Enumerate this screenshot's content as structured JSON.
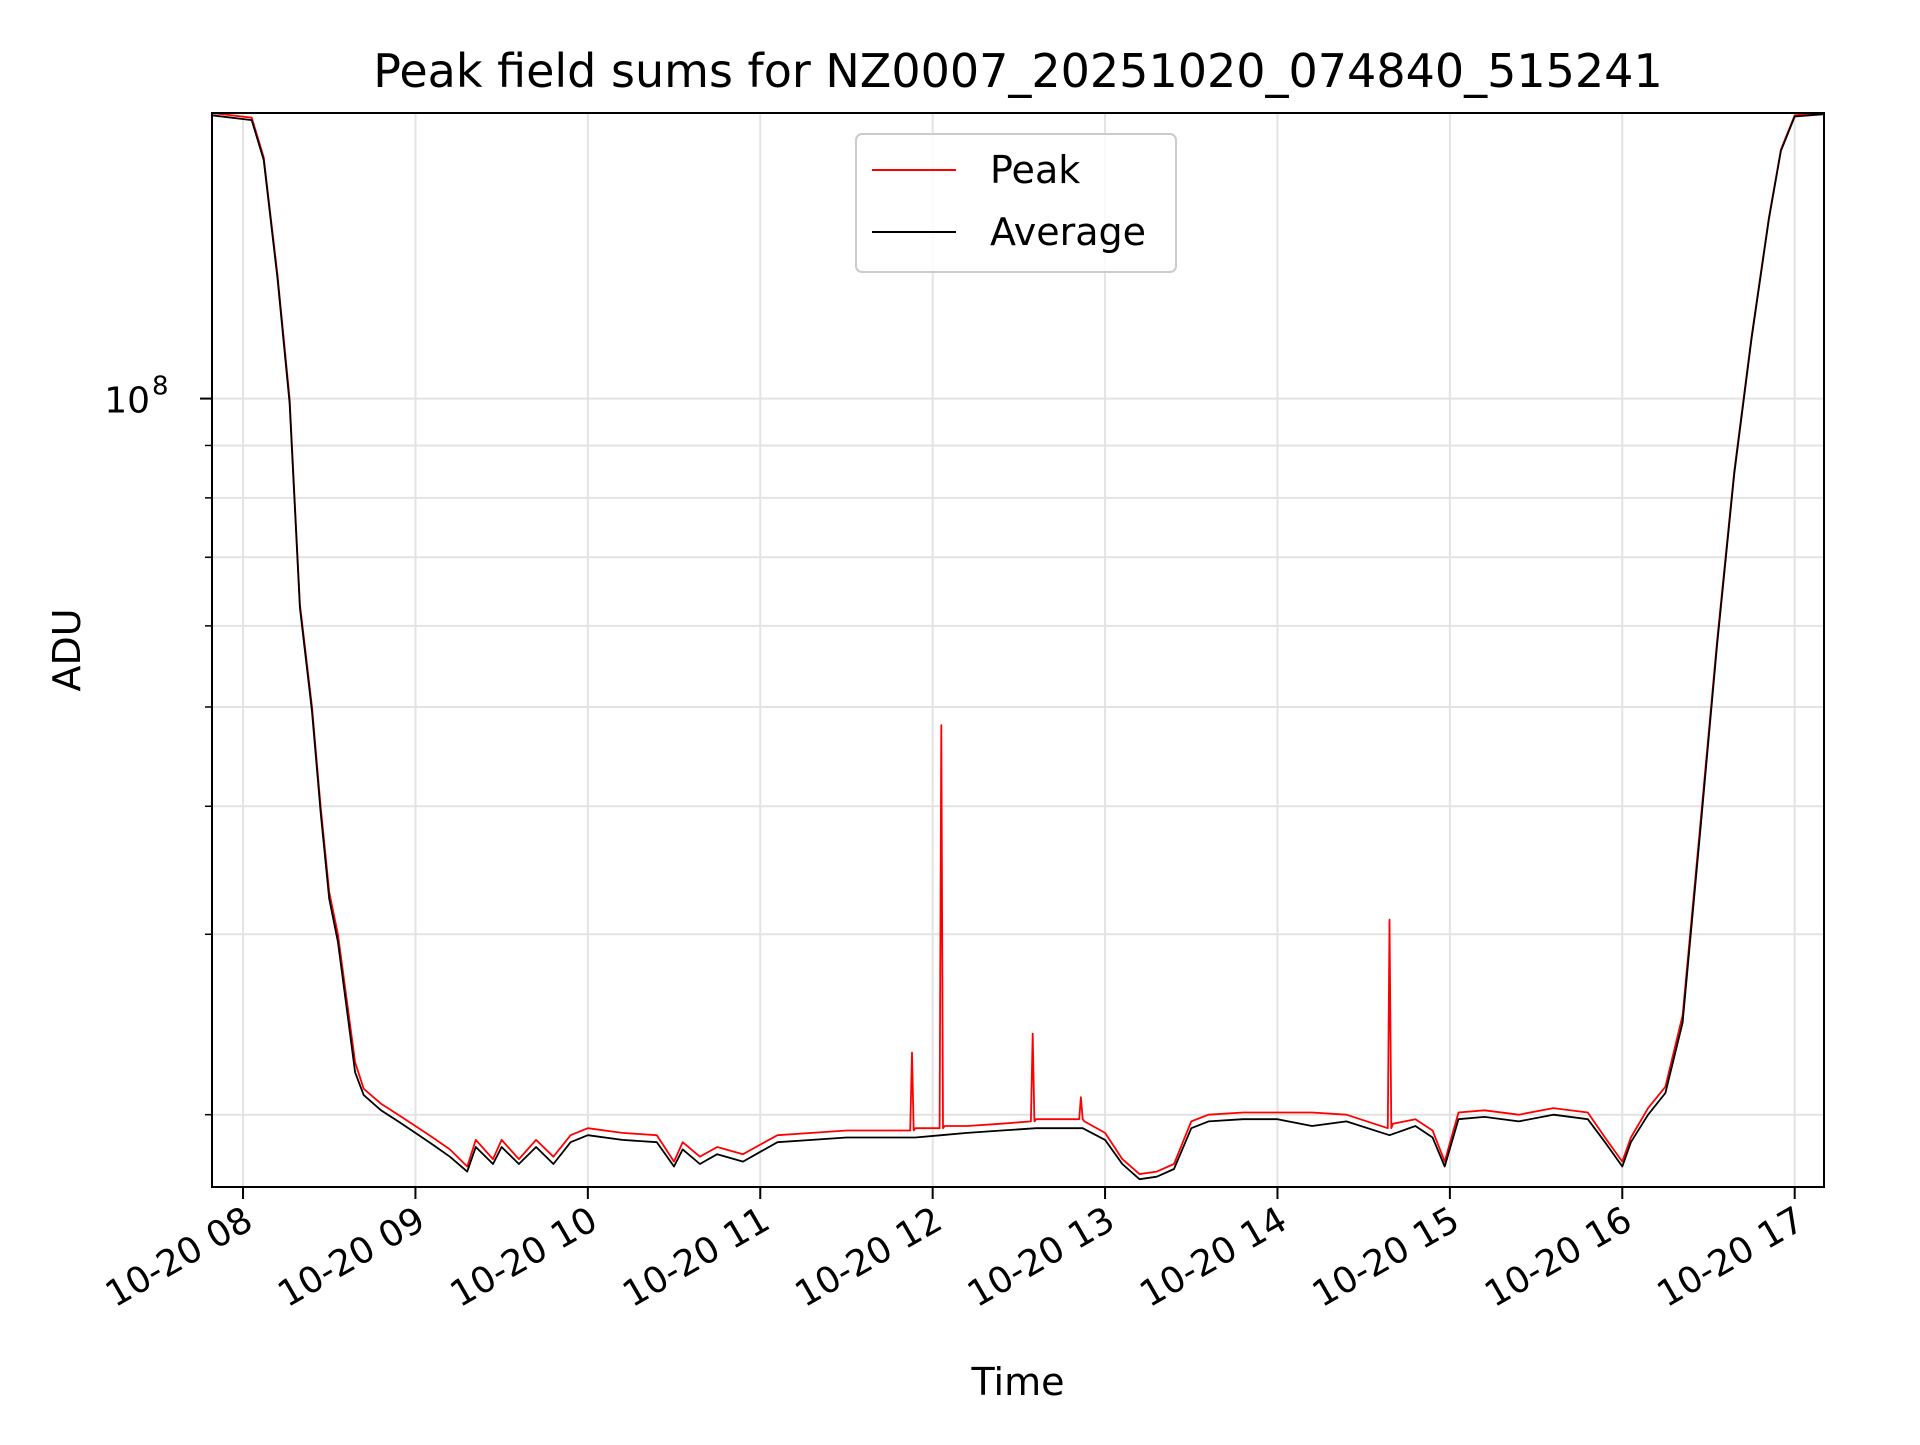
{
  "chart_data": {
    "type": "line",
    "title": "Peak field sums for NZ0007_20251020_074840_515241",
    "xlabel": "Time",
    "ylabel": "ADU",
    "y_scale": "log",
    "ylim": [
      17000000,
      190000000
    ],
    "xlim_hours": [
      7.82,
      17.17
    ],
    "grid": true,
    "legend_position": "upper center",
    "x_tick_values_hours": [
      8,
      9,
      10,
      11,
      12,
      13,
      14,
      15,
      16,
      17
    ],
    "x_ticks": [
      "10-20 08",
      "10-20 09",
      "10-20 10",
      "10-20 11",
      "10-20 12",
      "10-20 13",
      "10-20 14",
      "10-20 15",
      "10-20 16",
      "10-20 17"
    ],
    "y_major_tick_value": 100000000,
    "y_major_tick_mantissa": "10",
    "y_major_tick_exponent": "8",
    "y_minor_tick_values": [
      20000000,
      30000000,
      40000000,
      50000000,
      60000000,
      70000000,
      80000000,
      90000000
    ],
    "series": [
      {
        "name": "Peak",
        "color": "#ff0000",
        "x_hours": [
          7.82,
          8.05,
          8.12,
          8.2,
          8.27,
          8.33,
          8.4,
          8.45,
          8.5,
          8.55,
          8.6,
          8.65,
          8.7,
          8.8,
          8.9,
          9.0,
          9.1,
          9.2,
          9.3,
          9.35,
          9.45,
          9.5,
          9.6,
          9.7,
          9.8,
          9.9,
          10.0,
          10.2,
          10.4,
          10.5,
          10.55,
          10.65,
          10.75,
          10.9,
          11.0,
          11.1,
          11.3,
          11.5,
          11.7,
          11.87,
          11.88,
          11.89,
          11.9,
          12.04,
          12.05,
          12.06,
          12.07,
          12.2,
          12.4,
          12.57,
          12.58,
          12.59,
          12.6,
          12.85,
          12.86,
          12.87,
          12.88,
          13.0,
          13.1,
          13.2,
          13.3,
          13.4,
          13.5,
          13.6,
          13.8,
          14.0,
          14.2,
          14.4,
          14.64,
          14.65,
          14.66,
          14.67,
          14.8,
          14.9,
          14.97,
          15.05,
          15.2,
          15.4,
          15.6,
          15.8,
          15.9,
          16.0,
          16.05,
          16.15,
          16.25,
          16.35,
          16.45,
          16.55,
          16.65,
          16.75,
          16.85,
          16.92,
          17.0,
          17.17
        ],
        "y": [
          190000000,
          188000000,
          172000000,
          132000000,
          100000000,
          63000000,
          50000000,
          40000000,
          33000000,
          30000000,
          26000000,
          22500000,
          21200000,
          20500000,
          20000000,
          19500000,
          19000000,
          18500000,
          17800000,
          18900000,
          18100000,
          18900000,
          18100000,
          18900000,
          18200000,
          19100000,
          19400000,
          19200000,
          19100000,
          18000000,
          18800000,
          18200000,
          18600000,
          18300000,
          18700000,
          19100000,
          19200000,
          19300000,
          19300000,
          19300000,
          23000000,
          19300000,
          19400000,
          19400000,
          48000000,
          19400000,
          19500000,
          19500000,
          19600000,
          19700000,
          24000000,
          19700000,
          19800000,
          19800000,
          20800000,
          19800000,
          19700000,
          19200000,
          18100000,
          17500000,
          17600000,
          17900000,
          19700000,
          20000000,
          20100000,
          20100000,
          20100000,
          20000000,
          19400000,
          31000000,
          19400000,
          19600000,
          19800000,
          19300000,
          18000000,
          20100000,
          20200000,
          20000000,
          20300000,
          20100000,
          19000000,
          18000000,
          19000000,
          20300000,
          21300000,
          25000000,
          38000000,
          58000000,
          85000000,
          115000000,
          150000000,
          175000000,
          189000000,
          190000000
        ]
      },
      {
        "name": "Average",
        "color": "#000000",
        "x_hours": [
          7.82,
          8.05,
          8.12,
          8.2,
          8.27,
          8.33,
          8.4,
          8.45,
          8.5,
          8.55,
          8.6,
          8.65,
          8.7,
          8.8,
          8.9,
          9.0,
          9.1,
          9.2,
          9.3,
          9.35,
          9.45,
          9.5,
          9.6,
          9.7,
          9.8,
          9.9,
          10.0,
          10.2,
          10.4,
          10.5,
          10.55,
          10.65,
          10.75,
          10.9,
          11.0,
          11.1,
          11.3,
          11.5,
          11.7,
          11.9,
          12.05,
          12.2,
          12.4,
          12.6,
          12.87,
          13.0,
          13.1,
          13.2,
          13.3,
          13.4,
          13.5,
          13.6,
          13.8,
          14.0,
          14.2,
          14.4,
          14.65,
          14.8,
          14.9,
          14.97,
          15.05,
          15.2,
          15.4,
          15.6,
          15.8,
          15.9,
          16.0,
          16.05,
          16.15,
          16.25,
          16.35,
          16.45,
          16.55,
          16.65,
          16.75,
          16.85,
          16.92,
          17.0,
          17.17
        ],
        "y": [
          189000000,
          187000000,
          171000000,
          131000000,
          99000000,
          62500000,
          49500000,
          39500000,
          32500000,
          29500000,
          25500000,
          22000000,
          20900000,
          20200000,
          19700000,
          19200000,
          18700000,
          18200000,
          17600000,
          18600000,
          17900000,
          18600000,
          17900000,
          18600000,
          17900000,
          18800000,
          19100000,
          18900000,
          18800000,
          17800000,
          18500000,
          17900000,
          18300000,
          18000000,
          18400000,
          18800000,
          18900000,
          19000000,
          19000000,
          19000000,
          19100000,
          19200000,
          19300000,
          19400000,
          19400000,
          18900000,
          17900000,
          17300000,
          17400000,
          17700000,
          19400000,
          19700000,
          19800000,
          19800000,
          19500000,
          19700000,
          19100000,
          19500000,
          19000000,
          17800000,
          19800000,
          19900000,
          19700000,
          20000000,
          19800000,
          18800000,
          17800000,
          18800000,
          20000000,
          21000000,
          24600000,
          37500000,
          57500000,
          84500000,
          114500000,
          149500000,
          174500000,
          188500000,
          189500000
        ]
      }
    ]
  }
}
